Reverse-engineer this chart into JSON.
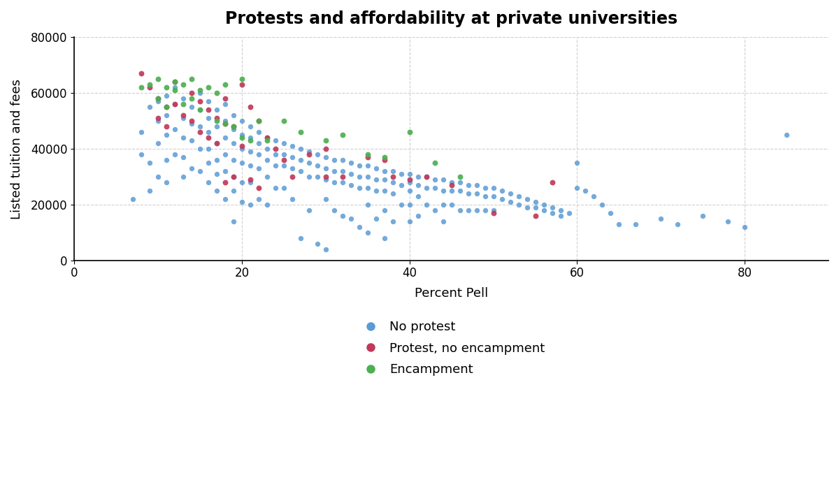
{
  "title": "Protests and affordability at private universities",
  "xlabel": "Percent Pell",
  "ylabel": "Listed tuition and fees",
  "xlim": [
    0,
    90
  ],
  "ylim": [
    0,
    80000
  ],
  "xticks": [
    0,
    20,
    40,
    60,
    80
  ],
  "yticks": [
    0,
    20000,
    40000,
    60000,
    80000
  ],
  "colors": {
    "no_protest": "#5b9bd5",
    "protest": "#c0395a",
    "encampment": "#4caf50"
  },
  "legend_labels": [
    "No protest",
    "Protest, no encampment",
    "Encampment"
  ],
  "background_color": "#ffffff",
  "grid_color": "#d0d0d0",
  "no_protest": {
    "pell": [
      7,
      8,
      8,
      9,
      9,
      9,
      10,
      10,
      10,
      10,
      11,
      11,
      11,
      11,
      11,
      12,
      12,
      12,
      12,
      13,
      13,
      13,
      13,
      13,
      14,
      14,
      14,
      14,
      15,
      15,
      15,
      15,
      15,
      16,
      16,
      16,
      16,
      16,
      16,
      17,
      17,
      17,
      17,
      17,
      17,
      18,
      18,
      18,
      18,
      18,
      18,
      19,
      19,
      19,
      19,
      19,
      19,
      19,
      20,
      20,
      20,
      20,
      20,
      20,
      21,
      21,
      21,
      21,
      21,
      21,
      22,
      22,
      22,
      22,
      22,
      23,
      23,
      23,
      23,
      23,
      24,
      24,
      24,
      24,
      25,
      25,
      25,
      25,
      26,
      26,
      26,
      26,
      27,
      27,
      27,
      27,
      28,
      28,
      28,
      28,
      29,
      29,
      29,
      29,
      30,
      30,
      30,
      30,
      30,
      31,
      31,
      31,
      31,
      32,
      32,
      32,
      32,
      33,
      33,
      33,
      33,
      34,
      34,
      34,
      34,
      35,
      35,
      35,
      35,
      35,
      36,
      36,
      36,
      36,
      37,
      37,
      37,
      37,
      37,
      38,
      38,
      38,
      38,
      39,
      39,
      39,
      40,
      40,
      40,
      40,
      40,
      41,
      41,
      41,
      41,
      42,
      42,
      42,
      43,
      43,
      43,
      44,
      44,
      44,
      44,
      45,
      45,
      45,
      46,
      46,
      46,
      47,
      47,
      47,
      48,
      48,
      48,
      49,
      49,
      49,
      50,
      50,
      50,
      51,
      51,
      52,
      52,
      53,
      53,
      54,
      54,
      55,
      55,
      56,
      56,
      57,
      57,
      58,
      58,
      59,
      60,
      60,
      61,
      62,
      63,
      64,
      65,
      67,
      70,
      72,
      75,
      78,
      80,
      85
    ],
    "tuition": [
      22000,
      46000,
      38000,
      55000,
      35000,
      25000,
      57000,
      50000,
      42000,
      30000,
      59000,
      52000,
      45000,
      36000,
      28000,
      62000,
      56000,
      47000,
      38000,
      58000,
      51000,
      44000,
      37000,
      30000,
      55000,
      49000,
      43000,
      33000,
      60000,
      54000,
      48000,
      40000,
      32000,
      57000,
      51000,
      46000,
      40000,
      35000,
      28000,
      54000,
      48000,
      42000,
      36000,
      31000,
      25000,
      56000,
      50000,
      44000,
      38000,
      32000,
      22000,
      52000,
      47000,
      42000,
      36000,
      30000,
      25000,
      14000,
      50000,
      45000,
      40000,
      35000,
      28000,
      21000,
      48000,
      44000,
      39000,
      34000,
      28000,
      20000,
      46000,
      42000,
      38000,
      33000,
      22000,
      44000,
      40000,
      36000,
      30000,
      20000,
      43000,
      38000,
      34000,
      26000,
      42000,
      38000,
      34000,
      26000,
      41000,
      37000,
      33000,
      22000,
      40000,
      36000,
      32000,
      8000,
      39000,
      35000,
      30000,
      18000,
      38000,
      34000,
      30000,
      6000,
      37000,
      33000,
      29000,
      22000,
      4000,
      36000,
      32000,
      28000,
      18000,
      36000,
      32000,
      28000,
      16000,
      35000,
      31000,
      27000,
      15000,
      34000,
      30000,
      26000,
      12000,
      34000,
      30000,
      26000,
      20000,
      10000,
      33000,
      29000,
      25000,
      15000,
      32000,
      29000,
      25000,
      18000,
      8000,
      32000,
      28000,
      24000,
      14000,
      31000,
      27000,
      20000,
      31000,
      28000,
      25000,
      20000,
      14000,
      30000,
      27000,
      23000,
      16000,
      30000,
      26000,
      20000,
      29000,
      26000,
      18000,
      29000,
      25000,
      20000,
      14000,
      28000,
      25000,
      20000,
      28000,
      25000,
      18000,
      27000,
      24000,
      18000,
      27000,
      24000,
      18000,
      26000,
      23000,
      18000,
      26000,
      23000,
      18000,
      25000,
      22000,
      24000,
      21000,
      23000,
      20000,
      22000,
      19000,
      21000,
      19000,
      20000,
      18000,
      19000,
      17000,
      18000,
      16000,
      17000,
      35000,
      26000,
      25000,
      23000,
      20000,
      17000,
      13000,
      13000,
      15000,
      13000,
      16000,
      14000,
      12000,
      45000
    ]
  },
  "protest": {
    "pell": [
      8,
      9,
      10,
      10,
      11,
      11,
      12,
      12,
      13,
      14,
      14,
      15,
      15,
      16,
      16,
      17,
      17,
      18,
      18,
      18,
      19,
      19,
      20,
      20,
      21,
      21,
      22,
      22,
      23,
      24,
      25,
      26,
      28,
      30,
      30,
      32,
      35,
      37,
      38,
      40,
      42,
      45,
      50,
      55,
      57
    ],
    "tuition": [
      67000,
      62000,
      58000,
      51000,
      55000,
      48000,
      64000,
      56000,
      52000,
      60000,
      50000,
      57000,
      46000,
      54000,
      44000,
      51000,
      42000,
      58000,
      49000,
      28000,
      48000,
      30000,
      63000,
      41000,
      55000,
      29000,
      50000,
      26000,
      44000,
      40000,
      36000,
      30000,
      38000,
      30000,
      40000,
      30000,
      37000,
      36000,
      30000,
      29000,
      30000,
      27000,
      17000,
      16000,
      28000
    ]
  },
  "encampment": {
    "pell": [
      8,
      9,
      10,
      10,
      11,
      11,
      12,
      12,
      13,
      13,
      14,
      14,
      15,
      15,
      16,
      17,
      17,
      18,
      18,
      19,
      20,
      20,
      21,
      22,
      23,
      25,
      27,
      30,
      32,
      35,
      37,
      40,
      43,
      46
    ],
    "tuition": [
      62000,
      63000,
      65000,
      58000,
      62000,
      55000,
      64000,
      61000,
      63000,
      56000,
      65000,
      58000,
      61000,
      54000,
      62000,
      60000,
      50000,
      63000,
      49000,
      48000,
      65000,
      44000,
      43000,
      50000,
      43000,
      50000,
      46000,
      43000,
      45000,
      38000,
      37000,
      46000,
      35000,
      30000
    ]
  }
}
